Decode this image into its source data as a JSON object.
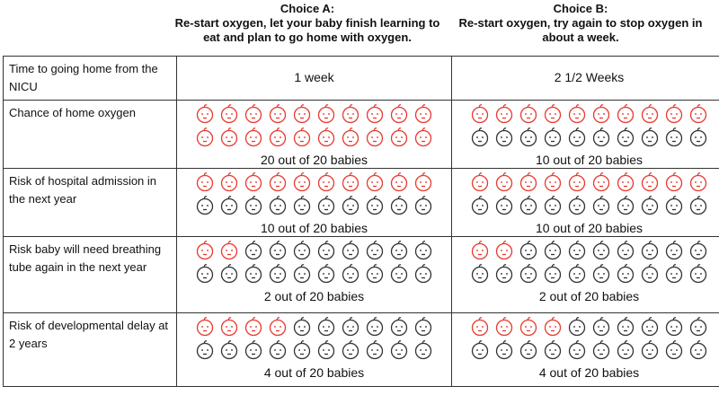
{
  "choice_a": {
    "title": "Choice A:",
    "subtitle": "Re-start oxygen, let your baby finish learning to eat and plan to go home with oxygen."
  },
  "choice_b": {
    "title": "Choice B:",
    "subtitle": "Re-start oxygen, try again to stop oxygen in about a week."
  },
  "colors": {
    "affected": "#e8392f",
    "unaffected": "#333333"
  },
  "rows": [
    {
      "label": "Time to going home from the NICU",
      "a_text": "1 week",
      "b_text": "2 1/2 Weeks"
    },
    {
      "label": "Chance of home oxygen",
      "a_count": 20,
      "a_caption": "20 out of 20 babies",
      "b_count": 10,
      "b_caption": "10 out of 20 babies"
    },
    {
      "label": "Risk of hospital admission in the next year",
      "a_count": 10,
      "a_caption": "10 out of 20 babies",
      "b_count": 10,
      "b_caption": "10 out of 20 babies"
    },
    {
      "label": "Risk baby will need breathing tube again in the next year",
      "a_count": 2,
      "a_caption": "2 out of 20 babies",
      "b_count": 2,
      "b_caption": "2 out of 20 babies"
    },
    {
      "label": "Risk of developmental delay at 2 years",
      "a_count": 4,
      "a_caption": "4 out of 20 babies",
      "b_count": 4,
      "b_caption": "4 out of 20 babies"
    }
  ]
}
